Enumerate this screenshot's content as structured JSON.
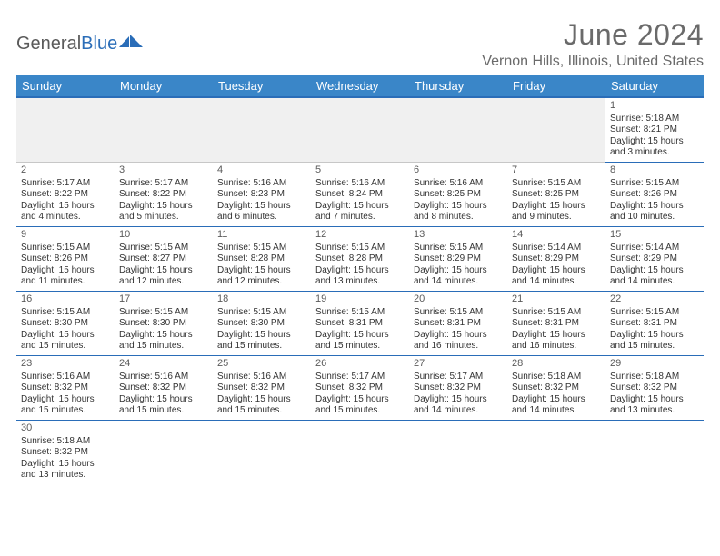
{
  "brand": {
    "name_part1": "General",
    "name_part2": "Blue"
  },
  "title": "June 2024",
  "location": "Vernon Hills, Illinois, United States",
  "colors": {
    "header_bg": "#3a86c8",
    "header_border": "#2a6db8",
    "cell_border": "#2a6db8",
    "text": "#333333",
    "muted": "#6a6a6a",
    "empty_bg": "#f0f0f0",
    "page_bg": "#ffffff"
  },
  "weekdays": [
    "Sunday",
    "Monday",
    "Tuesday",
    "Wednesday",
    "Thursday",
    "Friday",
    "Saturday"
  ],
  "grid": [
    [
      null,
      null,
      null,
      null,
      null,
      null,
      {
        "n": "1",
        "sr": "Sunrise: 5:18 AM",
        "ss": "Sunset: 8:21 PM",
        "d1": "Daylight: 15 hours",
        "d2": "and 3 minutes."
      }
    ],
    [
      {
        "n": "2",
        "sr": "Sunrise: 5:17 AM",
        "ss": "Sunset: 8:22 PM",
        "d1": "Daylight: 15 hours",
        "d2": "and 4 minutes."
      },
      {
        "n": "3",
        "sr": "Sunrise: 5:17 AM",
        "ss": "Sunset: 8:22 PM",
        "d1": "Daylight: 15 hours",
        "d2": "and 5 minutes."
      },
      {
        "n": "4",
        "sr": "Sunrise: 5:16 AM",
        "ss": "Sunset: 8:23 PM",
        "d1": "Daylight: 15 hours",
        "d2": "and 6 minutes."
      },
      {
        "n": "5",
        "sr": "Sunrise: 5:16 AM",
        "ss": "Sunset: 8:24 PM",
        "d1": "Daylight: 15 hours",
        "d2": "and 7 minutes."
      },
      {
        "n": "6",
        "sr": "Sunrise: 5:16 AM",
        "ss": "Sunset: 8:25 PM",
        "d1": "Daylight: 15 hours",
        "d2": "and 8 minutes."
      },
      {
        "n": "7",
        "sr": "Sunrise: 5:15 AM",
        "ss": "Sunset: 8:25 PM",
        "d1": "Daylight: 15 hours",
        "d2": "and 9 minutes."
      },
      {
        "n": "8",
        "sr": "Sunrise: 5:15 AM",
        "ss": "Sunset: 8:26 PM",
        "d1": "Daylight: 15 hours",
        "d2": "and 10 minutes."
      }
    ],
    [
      {
        "n": "9",
        "sr": "Sunrise: 5:15 AM",
        "ss": "Sunset: 8:26 PM",
        "d1": "Daylight: 15 hours",
        "d2": "and 11 minutes."
      },
      {
        "n": "10",
        "sr": "Sunrise: 5:15 AM",
        "ss": "Sunset: 8:27 PM",
        "d1": "Daylight: 15 hours",
        "d2": "and 12 minutes."
      },
      {
        "n": "11",
        "sr": "Sunrise: 5:15 AM",
        "ss": "Sunset: 8:28 PM",
        "d1": "Daylight: 15 hours",
        "d2": "and 12 minutes."
      },
      {
        "n": "12",
        "sr": "Sunrise: 5:15 AM",
        "ss": "Sunset: 8:28 PM",
        "d1": "Daylight: 15 hours",
        "d2": "and 13 minutes."
      },
      {
        "n": "13",
        "sr": "Sunrise: 5:15 AM",
        "ss": "Sunset: 8:29 PM",
        "d1": "Daylight: 15 hours",
        "d2": "and 14 minutes."
      },
      {
        "n": "14",
        "sr": "Sunrise: 5:14 AM",
        "ss": "Sunset: 8:29 PM",
        "d1": "Daylight: 15 hours",
        "d2": "and 14 minutes."
      },
      {
        "n": "15",
        "sr": "Sunrise: 5:14 AM",
        "ss": "Sunset: 8:29 PM",
        "d1": "Daylight: 15 hours",
        "d2": "and 14 minutes."
      }
    ],
    [
      {
        "n": "16",
        "sr": "Sunrise: 5:15 AM",
        "ss": "Sunset: 8:30 PM",
        "d1": "Daylight: 15 hours",
        "d2": "and 15 minutes."
      },
      {
        "n": "17",
        "sr": "Sunrise: 5:15 AM",
        "ss": "Sunset: 8:30 PM",
        "d1": "Daylight: 15 hours",
        "d2": "and 15 minutes."
      },
      {
        "n": "18",
        "sr": "Sunrise: 5:15 AM",
        "ss": "Sunset: 8:30 PM",
        "d1": "Daylight: 15 hours",
        "d2": "and 15 minutes."
      },
      {
        "n": "19",
        "sr": "Sunrise: 5:15 AM",
        "ss": "Sunset: 8:31 PM",
        "d1": "Daylight: 15 hours",
        "d2": "and 15 minutes."
      },
      {
        "n": "20",
        "sr": "Sunrise: 5:15 AM",
        "ss": "Sunset: 8:31 PM",
        "d1": "Daylight: 15 hours",
        "d2": "and 16 minutes."
      },
      {
        "n": "21",
        "sr": "Sunrise: 5:15 AM",
        "ss": "Sunset: 8:31 PM",
        "d1": "Daylight: 15 hours",
        "d2": "and 16 minutes."
      },
      {
        "n": "22",
        "sr": "Sunrise: 5:15 AM",
        "ss": "Sunset: 8:31 PM",
        "d1": "Daylight: 15 hours",
        "d2": "and 15 minutes."
      }
    ],
    [
      {
        "n": "23",
        "sr": "Sunrise: 5:16 AM",
        "ss": "Sunset: 8:32 PM",
        "d1": "Daylight: 15 hours",
        "d2": "and 15 minutes."
      },
      {
        "n": "24",
        "sr": "Sunrise: 5:16 AM",
        "ss": "Sunset: 8:32 PM",
        "d1": "Daylight: 15 hours",
        "d2": "and 15 minutes."
      },
      {
        "n": "25",
        "sr": "Sunrise: 5:16 AM",
        "ss": "Sunset: 8:32 PM",
        "d1": "Daylight: 15 hours",
        "d2": "and 15 minutes."
      },
      {
        "n": "26",
        "sr": "Sunrise: 5:17 AM",
        "ss": "Sunset: 8:32 PM",
        "d1": "Daylight: 15 hours",
        "d2": "and 15 minutes."
      },
      {
        "n": "27",
        "sr": "Sunrise: 5:17 AM",
        "ss": "Sunset: 8:32 PM",
        "d1": "Daylight: 15 hours",
        "d2": "and 14 minutes."
      },
      {
        "n": "28",
        "sr": "Sunrise: 5:18 AM",
        "ss": "Sunset: 8:32 PM",
        "d1": "Daylight: 15 hours",
        "d2": "and 14 minutes."
      },
      {
        "n": "29",
        "sr": "Sunrise: 5:18 AM",
        "ss": "Sunset: 8:32 PM",
        "d1": "Daylight: 15 hours",
        "d2": "and 13 minutes."
      }
    ],
    [
      {
        "n": "30",
        "sr": "Sunrise: 5:18 AM",
        "ss": "Sunset: 8:32 PM",
        "d1": "Daylight: 15 hours",
        "d2": "and 13 minutes."
      },
      null,
      null,
      null,
      null,
      null,
      null
    ]
  ]
}
